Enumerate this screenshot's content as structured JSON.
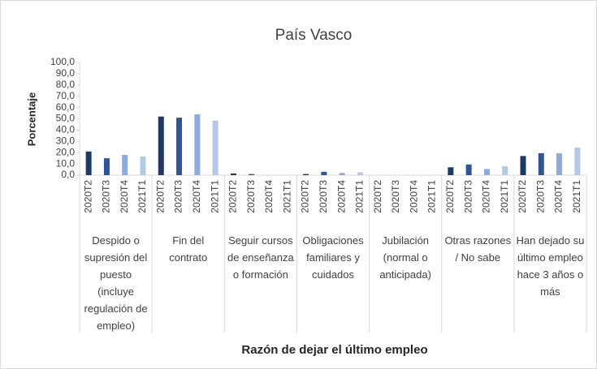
{
  "chart_data": {
    "type": "bar",
    "title": "País Vasco",
    "y_label": "Porcentaje",
    "x_label": "Razón de dejar el último empleo",
    "categories": [
      "Despido o supresión del puesto (incluye regulación de empleo)",
      "Fin del contrato",
      "Seguir cursos de enseñanza o formación",
      "Obligaciones familiares y cuidados",
      "Jubilación (normal o anticipada)",
      "Otras razones / No sabe",
      "Han dejado su último empleo hace 3 años o más"
    ],
    "series": [
      {
        "name": "2020T2",
        "color": "#1f3864",
        "values": [
          21,
          52,
          1.5,
          1,
          0,
          7,
          17
        ]
      },
      {
        "name": "2020T3",
        "color": "#2f5597",
        "values": [
          15,
          51,
          1,
          3,
          0,
          9.5,
          19.5
        ]
      },
      {
        "name": "2020T4",
        "color": "#8faadc",
        "values": [
          18,
          54,
          0,
          2,
          0,
          5.5,
          19.5
        ]
      },
      {
        "name": "2021T1",
        "color": "#b4c7e7",
        "values": [
          16.5,
          48.5,
          0,
          2.5,
          0,
          8,
          24.5
        ]
      }
    ],
    "ylim": [
      0,
      100
    ],
    "yticks": [
      {
        "value": 0,
        "label": "0,0"
      },
      {
        "value": 10,
        "label": "10,0"
      },
      {
        "value": 20,
        "label": "20,0"
      },
      {
        "value": 30,
        "label": "30,0"
      },
      {
        "value": 40,
        "label": "40,0"
      },
      {
        "value": 50,
        "label": "50,0"
      },
      {
        "value": 60,
        "label": "60,0"
      },
      {
        "value": 70,
        "label": "70,0"
      },
      {
        "value": 80,
        "label": "80,0"
      },
      {
        "value": 90,
        "label": "90,0"
      },
      {
        "value": 100,
        "label": "100,0"
      }
    ]
  }
}
